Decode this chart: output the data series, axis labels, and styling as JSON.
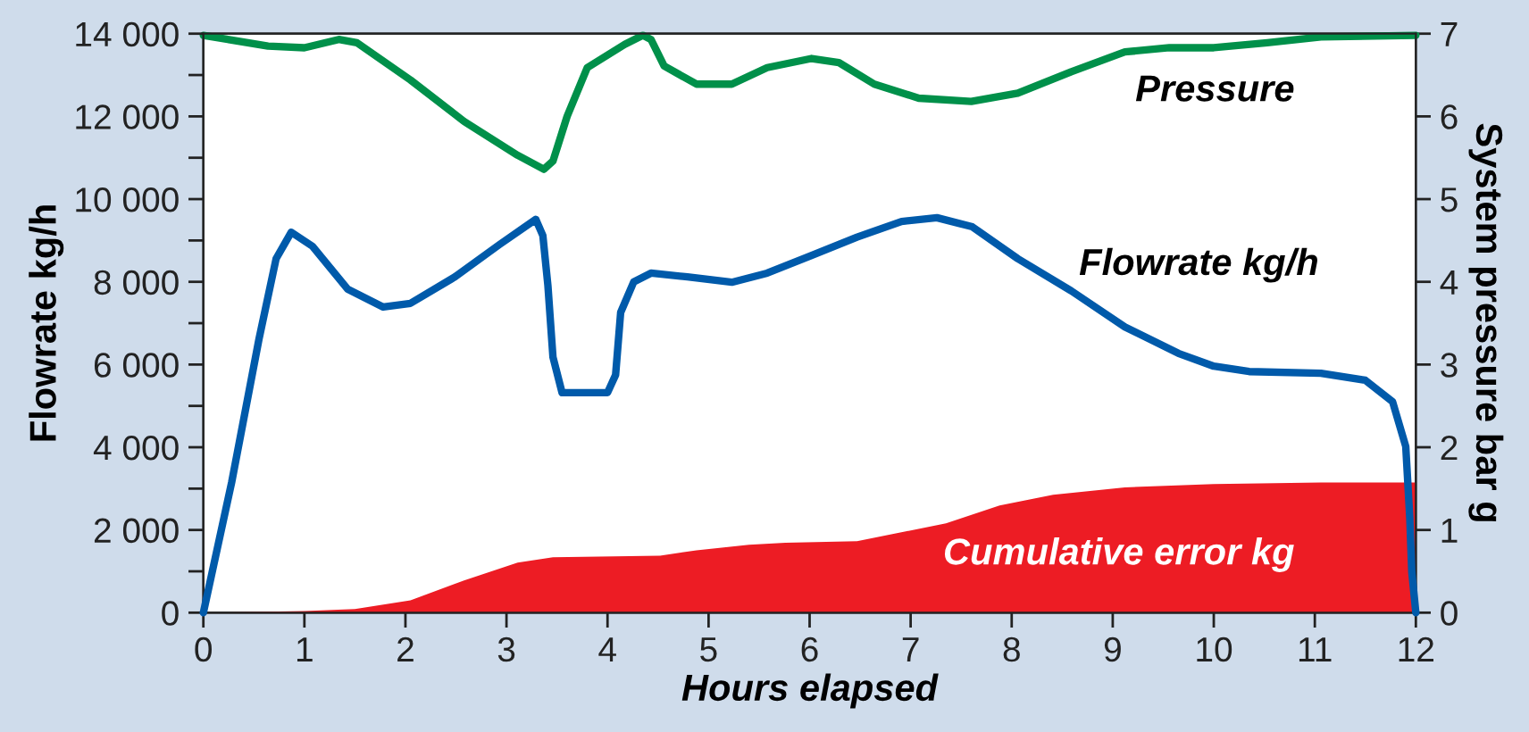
{
  "chart_data": {
    "type": "line",
    "xlabel": "Hours elapsed",
    "ylabel": "Flowrate kg/h",
    "y2label": "System pressure bar g",
    "xlim": [
      0,
      12
    ],
    "xticks": [
      0,
      1,
      2,
      3,
      4,
      5,
      6,
      7,
      8,
      9,
      10,
      11,
      12
    ],
    "ylim": [
      0,
      14000
    ],
    "yticks": [
      {
        "value": 0,
        "label": "0"
      },
      {
        "value": 1000,
        "label": null
      },
      {
        "value": 2000,
        "label": "2 000"
      },
      {
        "value": 3000,
        "label": null
      },
      {
        "value": 4000,
        "label": "4 000"
      },
      {
        "value": 5000,
        "label": null
      },
      {
        "value": 6000,
        "label": "6 000"
      },
      {
        "value": 7000,
        "label": null
      },
      {
        "value": 8000,
        "label": "8 000"
      },
      {
        "value": 9000,
        "label": null
      },
      {
        "value": 10000,
        "label": "10 000"
      },
      {
        "value": 11000,
        "label": null
      },
      {
        "value": 12000,
        "label": "12 000"
      },
      {
        "value": 13000,
        "label": null
      },
      {
        "value": 14000,
        "label": "14 000"
      }
    ],
    "y2lim": [
      0,
      7
    ],
    "y2ticks": [
      0,
      1,
      2,
      3,
      4,
      5,
      6,
      7
    ],
    "grid": false,
    "legend": false,
    "series": [
      {
        "name": "Cumulative error kg",
        "type": "area",
        "color": "#ed1c24",
        "x": [
          0,
          1.0,
          1.5,
          2.05,
          2.58,
          3.11,
          3.46,
          4.52,
          4.88,
          5.4,
          5.76,
          6.47,
          6.82,
          7.35,
          7.88,
          8.41,
          9.12,
          10.0,
          11.06,
          12
        ],
        "values": [
          0,
          40,
          90,
          300,
          780,
          1210,
          1340,
          1380,
          1510,
          1640,
          1690,
          1730,
          1900,
          2160,
          2590,
          2850,
          3030,
          3110,
          3150,
          3150
        ]
      },
      {
        "name": "Flowrate kg/h",
        "color": "#005aaa",
        "x": [
          0,
          0.28,
          0.55,
          0.72,
          0.87,
          1.08,
          1.43,
          1.78,
          2.05,
          2.49,
          2.93,
          3.29,
          3.36,
          3.41,
          3.46,
          3.55,
          4.0,
          4.08,
          4.13,
          4.26,
          4.43,
          4.79,
          5.23,
          5.58,
          6.02,
          6.47,
          6.91,
          7.26,
          7.61,
          8.06,
          8.59,
          9.12,
          9.65,
          10.0,
          10.35,
          11.06,
          11.5,
          11.77,
          11.9,
          11.94,
          11.96,
          12
        ],
        "values": [
          0,
          3150,
          6610,
          8560,
          9200,
          8860,
          7820,
          7390,
          7480,
          8120,
          8900,
          9510,
          9120,
          7910,
          6180,
          5320,
          5320,
          5750,
          7260,
          8000,
          8210,
          8120,
          7990,
          8210,
          8640,
          9080,
          9460,
          9550,
          9330,
          8560,
          7780,
          6910,
          6270,
          5960,
          5830,
          5790,
          5620,
          5100,
          4020,
          2290,
          990,
          0
        ]
      },
      {
        "name": "Pressure",
        "axis": "y2",
        "color": "#00904a",
        "x": [
          0,
          0.64,
          1.0,
          1.34,
          1.52,
          2.05,
          2.58,
          3.11,
          3.37,
          3.46,
          3.6,
          3.8,
          4.17,
          4.35,
          4.43,
          4.56,
          4.88,
          5.23,
          5.58,
          6.02,
          6.29,
          6.64,
          7.08,
          7.6,
          8.06,
          8.59,
          9.12,
          9.56,
          10.0,
          10.53,
          11.06,
          12
        ],
        "values": [
          6.98,
          6.85,
          6.83,
          6.93,
          6.89,
          6.44,
          5.94,
          5.53,
          5.36,
          5.46,
          6.0,
          6.59,
          6.87,
          6.98,
          6.93,
          6.61,
          6.39,
          6.39,
          6.59,
          6.7,
          6.65,
          6.39,
          6.22,
          6.18,
          6.28,
          6.54,
          6.78,
          6.83,
          6.83,
          6.89,
          6.96,
          6.98
        ]
      }
    ]
  }
}
